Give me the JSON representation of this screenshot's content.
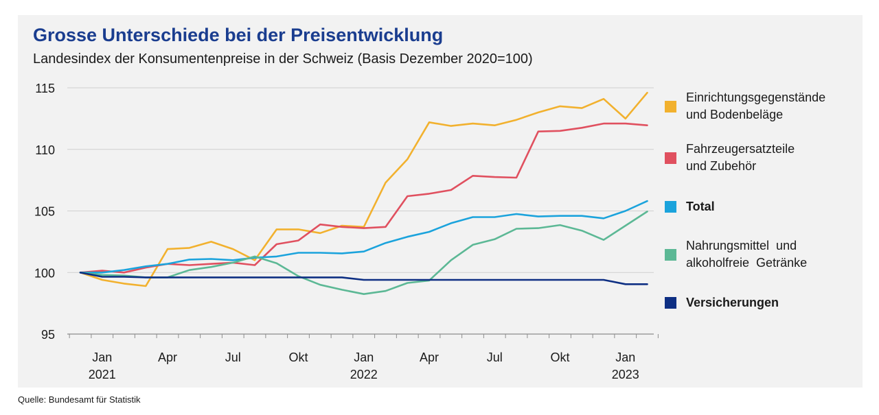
{
  "title": "Grosse Unterschiede bei der Preisentwicklung",
  "subtitle": "Landesindex der Konsumentenpreise in der Schweiz (Basis Dezember 2020=100)",
  "source": "Quelle: Bundesamt für Statistik",
  "chart_data": {
    "type": "line",
    "title": "Grosse Unterschiede bei der Preisentwicklung",
    "subtitle": "Landesindex der Konsumentenpreise in der Schweiz (Basis Dezember 2020=100)",
    "ylim": [
      95,
      115
    ],
    "yticks": [
      95,
      100,
      105,
      110,
      115
    ],
    "grid": true,
    "legend_position": "right",
    "x": [
      "2020-12",
      "2021-01",
      "2021-02",
      "2021-03",
      "2021-04",
      "2021-05",
      "2021-06",
      "2021-07",
      "2021-08",
      "2021-09",
      "2021-10",
      "2021-11",
      "2021-12",
      "2022-01",
      "2022-02",
      "2022-03",
      "2022-04",
      "2022-05",
      "2022-06",
      "2022-07",
      "2022-08",
      "2022-09",
      "2022-10",
      "2022-11",
      "2022-12",
      "2023-01",
      "2023-02"
    ],
    "xtick_labels": [
      {
        "x": "2021-01",
        "line1": "Jan",
        "line2": "2021"
      },
      {
        "x": "2021-04",
        "line1": "Apr",
        "line2": ""
      },
      {
        "x": "2021-07",
        "line1": "Jul",
        "line2": ""
      },
      {
        "x": "2021-10",
        "line1": "Okt",
        "line2": ""
      },
      {
        "x": "2022-01",
        "line1": "Jan",
        "line2": "2022"
      },
      {
        "x": "2022-04",
        "line1": "Apr",
        "line2": ""
      },
      {
        "x": "2022-07",
        "line1": "Jul",
        "line2": ""
      },
      {
        "x": "2022-10",
        "line1": "Okt",
        "line2": ""
      },
      {
        "x": "2023-01",
        "line1": "Jan",
        "line2": "2023"
      }
    ],
    "series": [
      {
        "name": "Einrichtungsgegenstände und Bodenbeläge",
        "color": "#f2b12e",
        "bold": false,
        "values": [
          100,
          99.4,
          99.1,
          98.9,
          101.9,
          102.0,
          102.5,
          101.9,
          101.0,
          103.5,
          103.5,
          103.2,
          103.8,
          103.7,
          107.3,
          109.2,
          112.2,
          111.9,
          112.1,
          111.95,
          112.4,
          113.0,
          113.5,
          113.35,
          114.1,
          112.5,
          114.6
        ]
      },
      {
        "name": "Fahrzeugersatzteile und Zubehör",
        "color": "#e0505f",
        "bold": false,
        "values": [
          100,
          100.15,
          100.0,
          100.4,
          100.7,
          100.6,
          100.7,
          100.8,
          100.6,
          102.3,
          102.6,
          103.9,
          103.7,
          103.6,
          103.7,
          106.2,
          106.4,
          106.7,
          107.85,
          107.75,
          107.7,
          111.45,
          111.5,
          111.75,
          112.1,
          112.1,
          111.95
        ]
      },
      {
        "name": "Total",
        "color": "#1ba3dc",
        "bold": true,
        "values": [
          100,
          100.0,
          100.2,
          100.5,
          100.7,
          101.05,
          101.1,
          101.0,
          101.2,
          101.3,
          101.6,
          101.6,
          101.55,
          101.7,
          102.4,
          102.9,
          103.3,
          104.0,
          104.5,
          104.5,
          104.75,
          104.55,
          104.6,
          104.6,
          104.4,
          105.0,
          105.8
        ]
      },
      {
        "name": "Nahrungsmittel und alkoholfreie Getränke",
        "color": "#5cb895",
        "bold": false,
        "values": [
          100,
          99.8,
          99.75,
          99.6,
          99.6,
          100.2,
          100.45,
          100.8,
          101.3,
          100.75,
          99.7,
          99.0,
          98.6,
          98.25,
          98.5,
          99.15,
          99.35,
          101.0,
          102.25,
          102.7,
          103.55,
          103.6,
          103.85,
          103.4,
          102.65,
          103.8,
          104.95
        ]
      },
      {
        "name": "Versicherungen",
        "color": "#0e2f83",
        "bold": true,
        "values": [
          100,
          99.65,
          99.65,
          99.6,
          99.6,
          99.6,
          99.6,
          99.6,
          99.6,
          99.6,
          99.6,
          99.6,
          99.6,
          99.4,
          99.4,
          99.4,
          99.4,
          99.4,
          99.4,
          99.4,
          99.4,
          99.4,
          99.4,
          99.4,
          99.4,
          99.05,
          99.05
        ]
      }
    ],
    "legend": [
      {
        "line1": "Einrichtungsgegenstände",
        "line2": "und Bodenbeläge",
        "color": "#f2b12e",
        "bold": false
      },
      {
        "line1": "Fahrzeugersatzteile",
        "line2": "und Zubehör",
        "color": "#e0505f",
        "bold": false
      },
      {
        "line1": "Total",
        "line2": "",
        "color": "#1ba3dc",
        "bold": true
      },
      {
        "line1": "Nahrungsmittel  und",
        "line2": "alkoholfreie  Getränke",
        "color": "#5cb895",
        "bold": false
      },
      {
        "line1": "Versicherungen",
        "line2": "",
        "color": "#0e2f83",
        "bold": true
      }
    ]
  }
}
